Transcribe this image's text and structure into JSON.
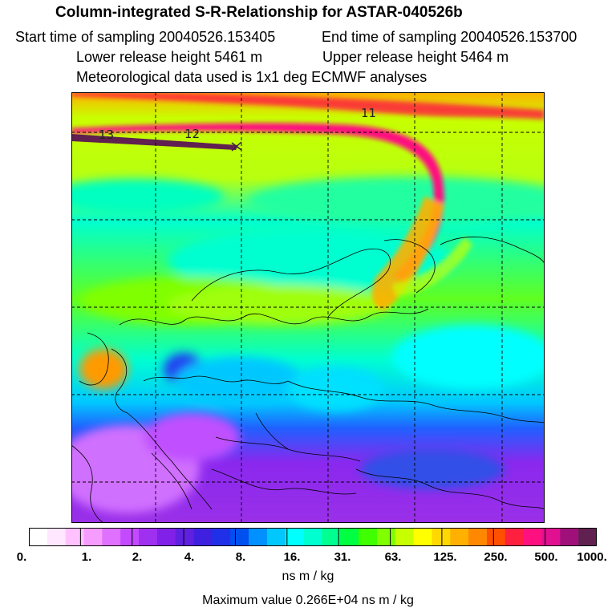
{
  "header": {
    "title": "Column-integrated S-R-Relationship for ASTAR-040526b",
    "start_time": "Start time of sampling 20040526.153405",
    "end_time": "End time of sampling 20040526.153700",
    "lower_height": "Lower release height 5461 m",
    "upper_height": "Upper release height 5464 m",
    "met_data": "Meteorological data used is 1x1 deg ECMWF analyses"
  },
  "map": {
    "time_markers": [
      "13",
      "12",
      "11"
    ],
    "palette": [
      "#ffffff",
      "#ffe8ff",
      "#ffc2ff",
      "#f69cff",
      "#e070ff",
      "#c44aff",
      "#a030f0",
      "#8020e8",
      "#6020e0",
      "#4020e0",
      "#2030e8",
      "#0050f0",
      "#0090ff",
      "#00c8ff",
      "#00ffff",
      "#00ffd0",
      "#00ff90",
      "#00ff40",
      "#40ff00",
      "#80ff00",
      "#c8ff00",
      "#ffff00",
      "#ffd800",
      "#ffb000",
      "#ff8800",
      "#ff5000",
      "#ff2040",
      "#ff1080",
      "#e01090",
      "#a0107a",
      "#602050"
    ]
  },
  "colorbar": {
    "labels": [
      "0.",
      "1.",
      "2.",
      "4.",
      "8.",
      "16.",
      "31.",
      "63.",
      "125.",
      "250.",
      "500.",
      "1000."
    ],
    "units": "ns m / kg"
  },
  "footer": {
    "max_value": "Maximum value  0.266E+04 ns m / kg"
  }
}
